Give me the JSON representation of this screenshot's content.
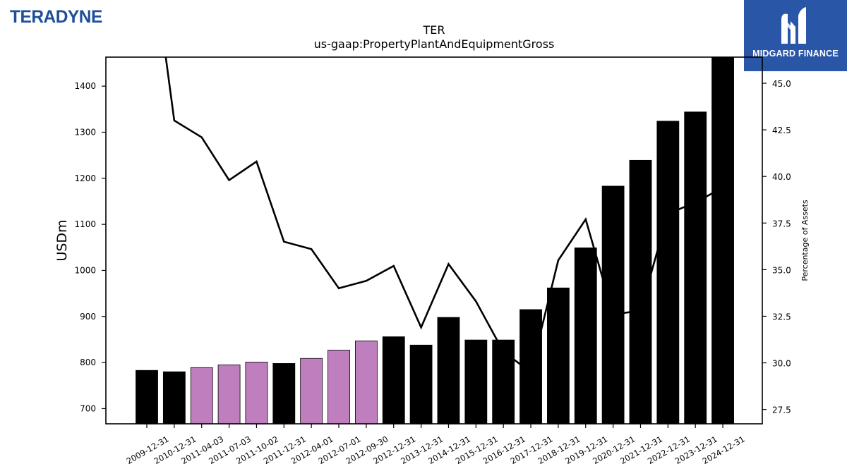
{
  "branding": {
    "left_logo_text": "TERADYNE",
    "left_logo_color": "#1f4e9a",
    "right_logo_text": "MIDGARD FINANCE",
    "right_logo_bg": "#2a56a8",
    "right_logo_icon": "midgard-m-icon"
  },
  "chart_data": {
    "type": "bar",
    "title": "TER",
    "subtitle": "us-gaap:PropertyPlantAndEquipmentGross",
    "ylabel": "USDm",
    "y2label": "Percentage of Assets",
    "ylim": [
      667,
      1463
    ],
    "y2lim": [
      26.73,
      46.4
    ],
    "yticks": [
      700,
      800,
      900,
      1000,
      1100,
      1200,
      1300,
      1400
    ],
    "y2ticks": [
      27.5,
      30.0,
      32.5,
      35.0,
      37.5,
      40.0,
      42.5,
      45.0
    ],
    "y2tick_labels": [
      "27.5",
      "30.0",
      "32.5",
      "35.0",
      "37.5",
      "40.0",
      "42.5",
      "45.0"
    ],
    "colors": {
      "annual": "#000000",
      "quarterly": "#bf7fbf",
      "line": "#000000"
    },
    "categories": [
      "2009-12-31",
      "2010-12-31",
      "2011-04-03",
      "2011-07-03",
      "2011-10-02",
      "2011-12-31",
      "2012-04-01",
      "2012-07-01",
      "2012-09-30",
      "2012-12-31",
      "2013-12-31",
      "2014-12-31",
      "2015-12-31",
      "2016-12-31",
      "2017-12-31",
      "2018-12-31",
      "2019-12-31",
      "2020-12-31",
      "2021-12-31",
      "2022-12-31",
      "2023-12-31",
      "2024-12-31"
    ],
    "series": [
      {
        "kind": "bar",
        "values": [
          783,
          780,
          789,
          795,
          801,
          798,
          809,
          827,
          847,
          856,
          838,
          898,
          849,
          849,
          915,
          962,
          1049,
          1183,
          1239,
          1324,
          1344,
          1462
        ],
        "period": [
          "annual",
          "annual",
          "quarterly",
          "quarterly",
          "quarterly",
          "annual",
          "quarterly",
          "quarterly",
          "quarterly",
          "annual",
          "annual",
          "annual",
          "annual",
          "annual",
          "annual",
          "annual",
          "annual",
          "annual",
          "annual",
          "annual",
          "annual",
          "annual"
        ]
      },
      {
        "kind": "line",
        "axis": "right",
        "values": [
          54.0,
          43.0,
          42.1,
          39.8,
          40.8,
          36.5,
          36.1,
          34.0,
          34.4,
          35.2,
          31.9,
          35.3,
          33.3,
          30.6,
          29.5,
          35.5,
          37.7,
          32.6,
          32.8,
          38.0,
          38.6,
          39.4
        ]
      }
    ]
  }
}
